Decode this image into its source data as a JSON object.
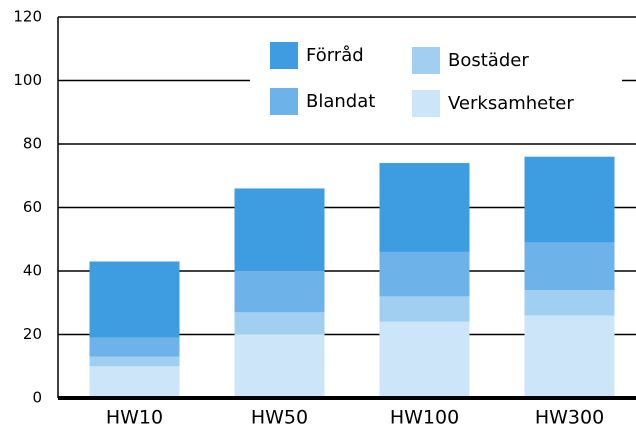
{
  "chart_data": {
    "type": "stacked_bar",
    "categories": [
      "HW10",
      "HW50",
      "HW100",
      "HW300"
    ],
    "series": [
      {
        "name": "Verksamheter",
        "color": "#cde5f8",
        "values": [
          10,
          20,
          24,
          26
        ]
      },
      {
        "name": "Bostäder",
        "color": "#a1cff2",
        "values": [
          3,
          7,
          8,
          8
        ]
      },
      {
        "name": "Blandat",
        "color": "#6db2e8",
        "values": [
          6,
          13,
          14,
          15
        ]
      },
      {
        "name": "Förråd",
        "color": "#3d9de0",
        "values": [
          24,
          26,
          28,
          27
        ]
      }
    ],
    "ylim": [
      0,
      120
    ],
    "yticks": [
      0,
      20,
      40,
      60,
      80,
      100,
      120
    ],
    "grid": true,
    "legend": "upper right"
  }
}
